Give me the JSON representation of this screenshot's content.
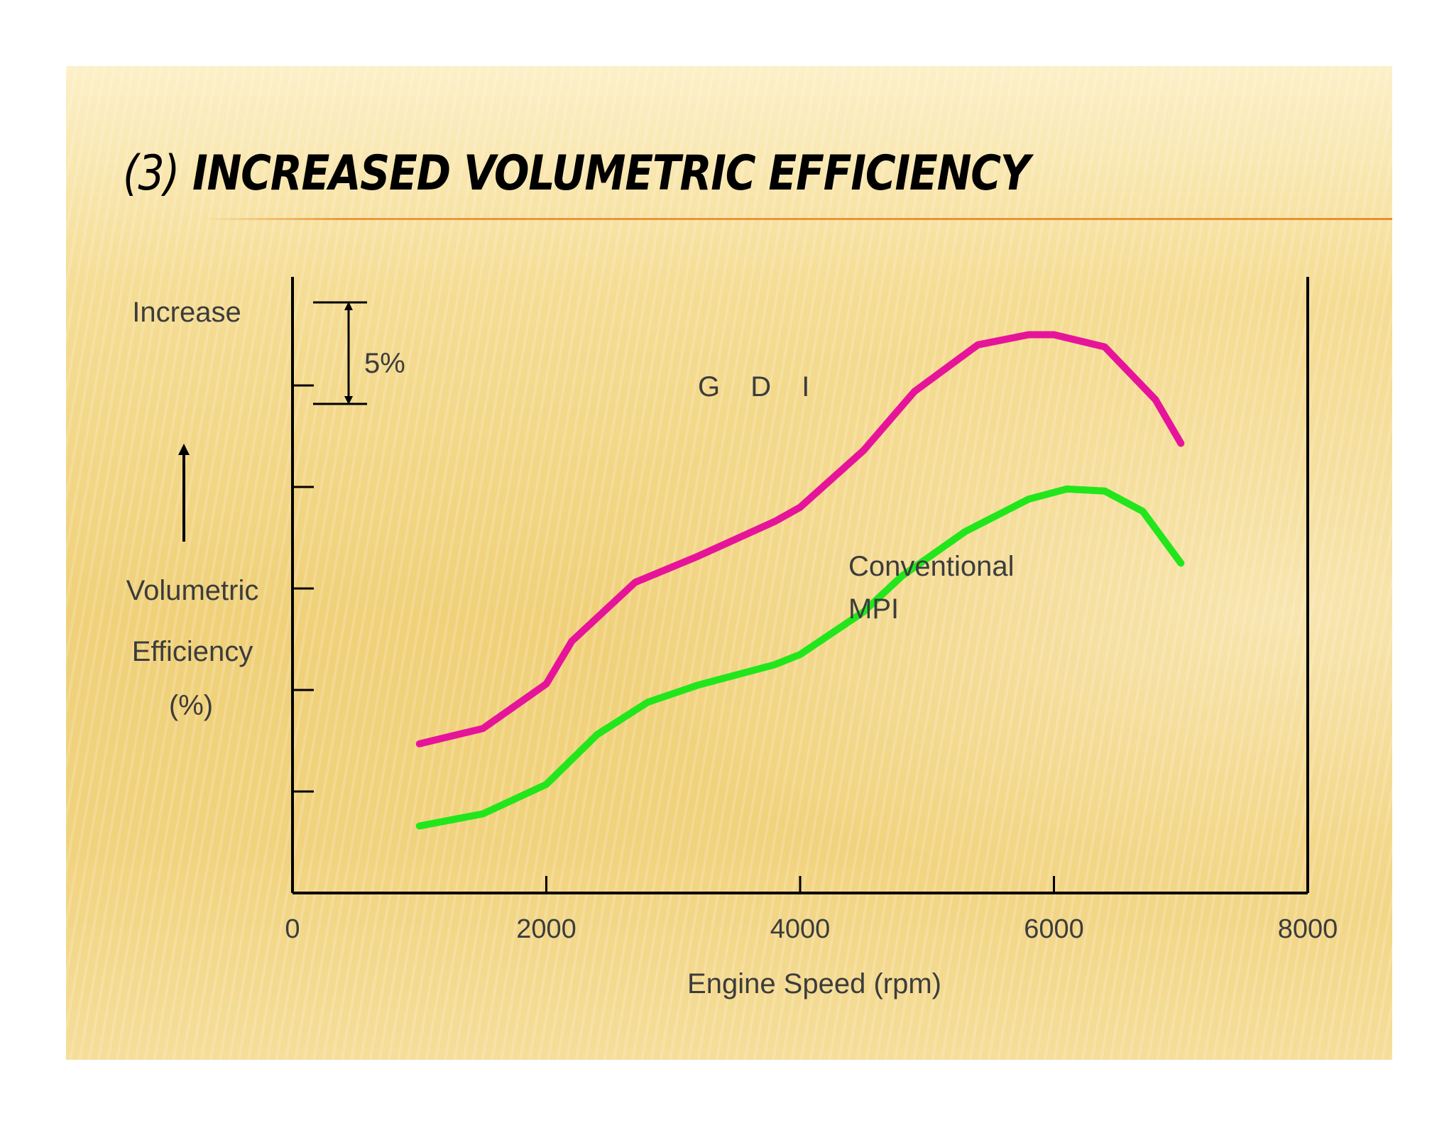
{
  "slide": {
    "title_number": "(3)",
    "title_text": "INCREASED VOLUMETRIC EFFICIENCY"
  },
  "chart_data": {
    "type": "line",
    "title": "",
    "xlabel": "Engine Speed  (rpm)",
    "ylabel_lines": [
      "Volumetric",
      "Efficiency",
      "(%)"
    ],
    "increase_label": "Increase",
    "scale_label": "5%",
    "xlim": [
      0,
      8000
    ],
    "x_ticks": [
      0,
      2000,
      4000,
      6000,
      8000
    ],
    "ylim": [
      0,
      6
    ],
    "y_ticks": [
      1,
      2,
      3,
      4,
      5
    ],
    "grid": false,
    "series": [
      {
        "name": "G D I",
        "color": "#e6149a",
        "x": [
          1000,
          1500,
          2000,
          2200,
          2700,
          3200,
          3800,
          4000,
          4500,
          4900,
          5400,
          5800,
          6000,
          6400,
          6800,
          7000
        ],
        "y": [
          1.47,
          1.62,
          2.06,
          2.48,
          3.06,
          3.32,
          3.66,
          3.8,
          4.36,
          4.94,
          5.4,
          5.5,
          5.5,
          5.38,
          4.86,
          4.43
        ]
      },
      {
        "name": "Conventional MPI",
        "label_lines": [
          "Conventional",
          "MPI"
        ],
        "color": "#22e61c",
        "x": [
          1000,
          1500,
          2000,
          2400,
          2800,
          3200,
          3800,
          4000,
          4500,
          4800,
          5300,
          5800,
          6100,
          6400,
          6700,
          7000
        ],
        "y": [
          0.66,
          0.78,
          1.07,
          1.56,
          1.88,
          2.05,
          2.25,
          2.35,
          2.77,
          3.12,
          3.56,
          3.88,
          3.98,
          3.96,
          3.76,
          3.25
        ]
      }
    ]
  }
}
